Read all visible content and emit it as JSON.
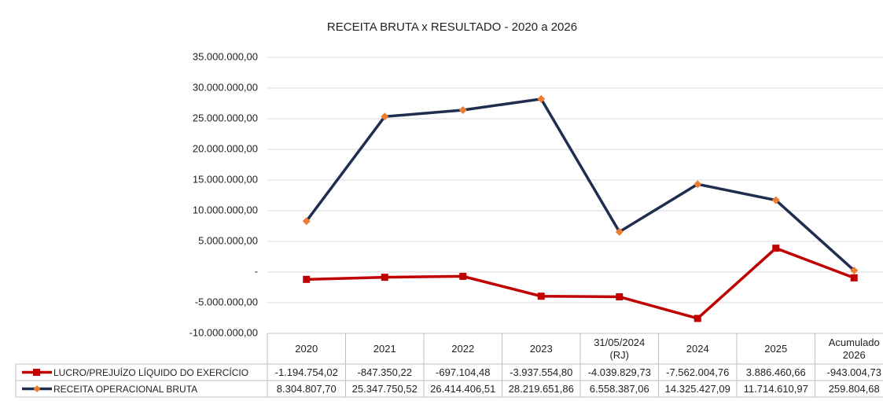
{
  "chart_data": {
    "type": "line",
    "title": "RECEITA BRUTA x RESULTADO - 2020 a 2026",
    "categories": [
      "2020",
      "2021",
      "2022",
      "2023",
      "31/05/2024 (RJ)",
      "2024",
      "2025",
      "Acumulado 2026"
    ],
    "series": [
      {
        "name": "LUCRO/PREJUÍZO LÍQUIDO DO EXERCÍCIO",
        "color": "#c00000",
        "marker": "square",
        "values": [
          -1194754.02,
          -847350.22,
          -697104.48,
          -3937554.8,
          -4039829.73,
          -7562004.76,
          3886460.66,
          -943004.73
        ],
        "value_labels": [
          "-1.194.754,02",
          "-847.350,22",
          "-697.104,48",
          "-3.937.554,80",
          "-4.039.829,73",
          "-7.562.004,76",
          "3.886.460,66",
          "-943.004,73"
        ]
      },
      {
        "name": "RECEITA OPERACIONAL BRUTA",
        "color": "#1f2d4e",
        "marker_color": "#ed7d31",
        "marker": "diamond",
        "values": [
          8304807.7,
          25347750.52,
          26414406.51,
          28219651.86,
          6558387.06,
          14325427.09,
          11714610.97,
          259804.68
        ],
        "value_labels": [
          "8.304.807,70",
          "25.347.750,52",
          "26.414.406,51",
          "28.219.651,86",
          "6.558.387,06",
          "14.325.427,09",
          "11.714.610,97",
          "259.804,68"
        ]
      }
    ],
    "ylim": [
      -10000000,
      35000000
    ],
    "yticks": [
      {
        "value": -10000000,
        "label": "-10.000.000,00"
      },
      {
        "value": -5000000,
        "label": "-5.000.000,00"
      },
      {
        "value": 0,
        "label": "-"
      },
      {
        "value": 5000000,
        "label": "5.000.000,00"
      },
      {
        "value": 10000000,
        "label": "10.000.000,00"
      },
      {
        "value": 15000000,
        "label": "15.000.000,00"
      },
      {
        "value": 20000000,
        "label": "20.000.000,00"
      },
      {
        "value": 25000000,
        "label": "25.000.000,00"
      },
      {
        "value": 30000000,
        "label": "30.000.000,00"
      },
      {
        "value": 35000000,
        "label": "35.000.000,00"
      }
    ],
    "grid": true
  }
}
